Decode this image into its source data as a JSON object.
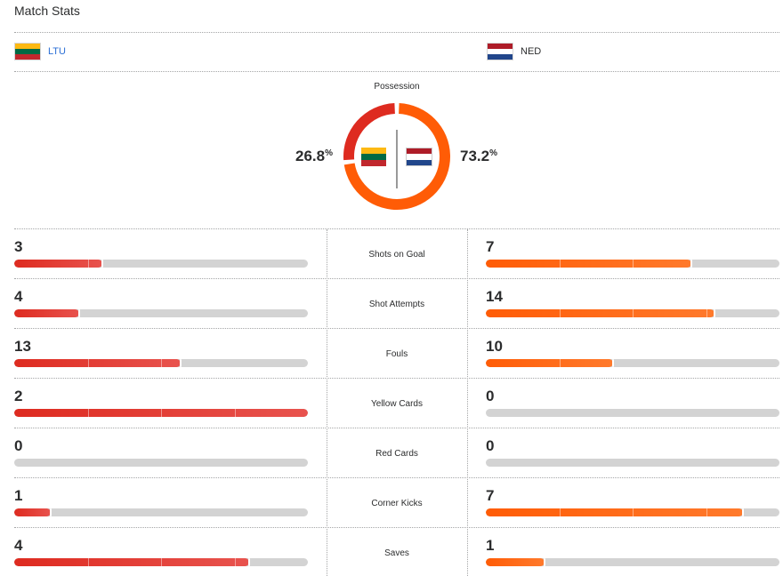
{
  "title": "Match Stats",
  "colors": {
    "home": "#de2b20",
    "away": "#ff5c06",
    "track": "#d3d3d3"
  },
  "teams": {
    "home": {
      "name": "LTU",
      "flag": [
        "#fdb913",
        "#006a44",
        "#c1272d"
      ]
    },
    "away": {
      "name": "NED",
      "flag": [
        "#ae1c28",
        "#ffffff",
        "#21468b"
      ]
    }
  },
  "possession": {
    "label": "Possession",
    "home": "26.8",
    "away": "73.2",
    "unit": "%"
  },
  "stats": [
    {
      "label": "Shots on Goal",
      "home": "3",
      "away": "7"
    },
    {
      "label": "Shot Attempts",
      "home": "4",
      "away": "14"
    },
    {
      "label": "Fouls",
      "home": "13",
      "away": "10"
    },
    {
      "label": "Yellow Cards",
      "home": "2",
      "away": "0"
    },
    {
      "label": "Red Cards",
      "home": "0",
      "away": "0"
    },
    {
      "label": "Corner Kicks",
      "home": "1",
      "away": "7"
    },
    {
      "label": "Saves",
      "home": "4",
      "away": "1"
    }
  ]
}
